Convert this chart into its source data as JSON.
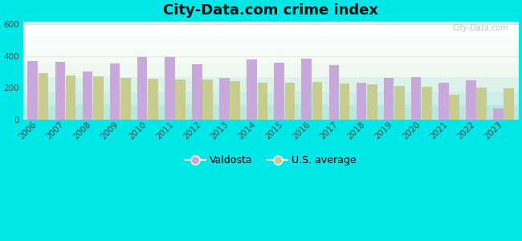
{
  "title": "City-Data.com crime index",
  "years": [
    2006,
    2007,
    2008,
    2009,
    2010,
    2011,
    2012,
    2013,
    2014,
    2015,
    2016,
    2017,
    2018,
    2019,
    2020,
    2021,
    2022,
    2023
  ],
  "valdosta": [
    370,
    365,
    305,
    355,
    393,
    393,
    350,
    260,
    378,
    360,
    383,
    342,
    230,
    260,
    265,
    230,
    248,
    70
  ],
  "us_average": [
    293,
    280,
    270,
    260,
    255,
    252,
    250,
    240,
    232,
    232,
    237,
    228,
    222,
    210,
    207,
    155,
    204,
    198
  ],
  "valdosta_color": "#c9a8dc",
  "us_color": "#c8cc8e",
  "background_outer": "#00e8e8",
  "ylim": [
    0,
    620
  ],
  "yticks": [
    0,
    200,
    400,
    600
  ],
  "legend_labels": [
    "Valdosta",
    "U.S. average"
  ],
  "watermark": "City-Data.com",
  "title_fontsize": 13,
  "tick_fontsize": 7.5,
  "gradient_colors_bottom_to_top": [
    "#b8e8e0",
    "#cceee6",
    "#ddf2ea",
    "#eef7f0",
    "#f5fbf5",
    "#fafdfb",
    "#ffffff"
  ],
  "grid_color": "#e0e8e0"
}
